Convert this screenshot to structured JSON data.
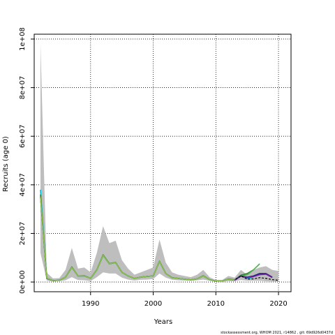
{
  "chart_data": {
    "type": "line",
    "xlabel": "Years",
    "ylabel": "Recruits (age 0)",
    "xlim": [
      1981,
      2022
    ],
    "ylim": [
      -4000000,
      102000000
    ],
    "x_ticks": [
      1990,
      2000,
      2010,
      2020
    ],
    "x_tick_labels": [
      "1990",
      "2000",
      "2010",
      "2020"
    ],
    "y_ticks": [
      0,
      20000000,
      40000000,
      60000000,
      80000000,
      100000000
    ],
    "y_tick_labels": [
      "0e+00",
      "2e+07",
      "4e+07",
      "6e+07",
      "8e+07",
      "1e+08"
    ],
    "grid": true,
    "grid_style": "dotted",
    "footer": "stockassessment.org, WHOM 2021, r14862 , git: 69d926d0437d",
    "confidence_band": {
      "color": "#bebebe",
      "x": [
        1982,
        1983,
        1984,
        1985,
        1986,
        1987,
        1988,
        1989,
        1990,
        1991,
        1992,
        1993,
        1994,
        1995,
        1996,
        1997,
        1998,
        1999,
        2000,
        2001,
        2002,
        2003,
        2004,
        2005,
        2006,
        2007,
        2008,
        2009,
        2010,
        2011,
        2012,
        2013,
        2014,
        2015,
        2016,
        2017,
        2018,
        2019,
        2020
      ],
      "upper": [
        98000000,
        3800000,
        1500000,
        1600000,
        5000000,
        14000000,
        5500000,
        6000000,
        4000000,
        12000000,
        23000000,
        16000000,
        17000000,
        9000000,
        5500000,
        3000000,
        4000000,
        5000000,
        6000000,
        17500000,
        8000000,
        4000000,
        3000000,
        2500000,
        2000000,
        3000000,
        5000000,
        2000000,
        800000,
        800000,
        2500000,
        1800000,
        5000000,
        3000000,
        5000000,
        6000000,
        6500000,
        5000000,
        4500000
      ],
      "lower": [
        12000000,
        600000,
        200000,
        300000,
        700000,
        2000000,
        800000,
        700000,
        400000,
        2000000,
        4000000,
        3500000,
        3500000,
        1800000,
        1000000,
        600000,
        900000,
        1000000,
        1200000,
        3500000,
        1800000,
        900000,
        700000,
        600000,
        500000,
        700000,
        1000000,
        500000,
        150000,
        150000,
        400000,
        300000,
        800000,
        500000,
        500000,
        500000,
        300000,
        200000,
        100000
      ]
    },
    "series": [
      {
        "color": "#00bcd4",
        "x": [
          1982,
          1983,
          1984,
          1985,
          1986,
          1987,
          1988,
          1989,
          1990,
          1991,
          1992,
          1993,
          1994,
          1995,
          1996,
          1997,
          1998,
          1999,
          2000,
          2001,
          2002,
          2003,
          2004,
          2005,
          2006,
          2007,
          2008,
          2009,
          2010,
          2011,
          2012,
          2013,
          2014,
          2015,
          2016
        ],
        "values": [
          38000000,
          1500000,
          600000,
          700000,
          2000000,
          6000000,
          2500000,
          2500000,
          1500000,
          5000000,
          11000000,
          7500000,
          8000000,
          4000000,
          2500000,
          1500000,
          2000000,
          2300000,
          2500000,
          8500000,
          3500000,
          1800000,
          1500000,
          1200000,
          900000,
          1300000,
          2500000,
          1000000,
          400000,
          400000,
          1200000,
          800000,
          2500000,
          1500000,
          2000000
        ]
      },
      {
        "color": "#2e7d32",
        "x": [
          1982,
          1983,
          1984,
          1985,
          1986,
          1987,
          1988,
          1989,
          1990,
          1991,
          1992,
          1993,
          1994,
          1995,
          1996,
          1997,
          1998,
          1999,
          2000,
          2001,
          2002,
          2003,
          2004,
          2005,
          2006,
          2007,
          2008,
          2009,
          2010,
          2011,
          2012,
          2013,
          2014,
          2015,
          2016
        ],
        "values": [
          36000000,
          1600000,
          600000,
          700000,
          2000000,
          6200000,
          2500000,
          2600000,
          1500000,
          5100000,
          11200000,
          7600000,
          8100000,
          4000000,
          2500000,
          1500000,
          2000000,
          2300000,
          2500000,
          8600000,
          3500000,
          1800000,
          1500000,
          1200000,
          900000,
          1300000,
          2600000,
          1000000,
          400000,
          400000,
          1300000,
          900000,
          2800000,
          3500000,
          5000000
        ]
      },
      {
        "color": "#4caf50",
        "x": [
          1982,
          1983,
          1984,
          1985,
          1986,
          1987,
          1988,
          1989,
          1990,
          1991,
          1992,
          1993,
          1994,
          1995,
          1996,
          1997,
          1998,
          1999,
          2000,
          2001,
          2002,
          2003,
          2004,
          2005,
          2006,
          2007,
          2008,
          2009,
          2010,
          2011,
          2012,
          2013,
          2014,
          2015,
          2016,
          2017
        ],
        "values": [
          35000000,
          1600000,
          600000,
          700000,
          2000000,
          6000000,
          2500000,
          2500000,
          1500000,
          5000000,
          11000000,
          7500000,
          8000000,
          4000000,
          2500000,
          1500000,
          2000000,
          2300000,
          2500000,
          8500000,
          3500000,
          1800000,
          1500000,
          1200000,
          900000,
          1300000,
          2500000,
          1000000,
          400000,
          400000,
          1200000,
          900000,
          2500000,
          3000000,
          5000000,
          7500000
        ]
      },
      {
        "color": "#1a237e",
        "x": [
          1982,
          1983,
          1984,
          1985,
          1986,
          1987,
          1988,
          1989,
          1990,
          1991,
          1992,
          1993,
          1994,
          1995,
          1996,
          1997,
          1998,
          1999,
          2000,
          2001,
          2002,
          2003,
          2004,
          2005,
          2006,
          2007,
          2008,
          2009,
          2010,
          2011,
          2012,
          2013,
          2014,
          2015,
          2016,
          2017,
          2018,
          2019
        ],
        "values": [
          35000000,
          1500000,
          600000,
          700000,
          2000000,
          6000000,
          2500000,
          2500000,
          1500000,
          5000000,
          11000000,
          7500000,
          8000000,
          4000000,
          2500000,
          1500000,
          2000000,
          2300000,
          2500000,
          8500000,
          3500000,
          1800000,
          1500000,
          1200000,
          900000,
          1300000,
          2500000,
          1000000,
          400000,
          400000,
          1200000,
          800000,
          2500000,
          2000000,
          2500000,
          3500000,
          3500000,
          2000000
        ]
      },
      {
        "color": "#7b1fa2",
        "x": [
          2012,
          2013,
          2014,
          2015,
          2016,
          2017,
          2018,
          2019
        ],
        "values": [
          1100000,
          800000,
          2400000,
          1800000,
          2200000,
          3000000,
          3200000,
          1800000
        ]
      },
      {
        "color": "#000000",
        "dashed": true,
        "x": [
          1982,
          1983,
          1984,
          1985,
          1986,
          1987,
          1988,
          1989,
          1990,
          1991,
          1992,
          1993,
          1994,
          1995,
          1996,
          1997,
          1998,
          1999,
          2000,
          2001,
          2002,
          2003,
          2004,
          2005,
          2006,
          2007,
          2008,
          2009,
          2010,
          2011,
          2012,
          2013,
          2014,
          2015,
          2016,
          2017,
          2018,
          2019,
          2020
        ],
        "values": [
          35000000,
          1500000,
          600000,
          700000,
          2000000,
          6000000,
          2500000,
          2500000,
          1500000,
          5000000,
          11000000,
          7500000,
          8000000,
          4000000,
          2500000,
          1500000,
          2000000,
          2300000,
          2500000,
          8500000,
          3500000,
          1800000,
          1500000,
          1200000,
          900000,
          1300000,
          2500000,
          1000000,
          400000,
          400000,
          1200000,
          800000,
          2500000,
          1200000,
          1300000,
          1800000,
          1500000,
          1000000,
          700000
        ]
      },
      {
        "color": "#8bc34a",
        "x": [
          1982,
          1983,
          1984,
          1985,
          1986,
          1987,
          1988,
          1989,
          1990,
          1991,
          1992,
          1993,
          1994,
          1995,
          1996,
          1997,
          1998,
          1999,
          2000,
          2001,
          2002,
          2003,
          2004,
          2005,
          2006,
          2007,
          2008,
          2009,
          2010,
          2011,
          2012,
          2013
        ],
        "values": [
          35000000,
          1600000,
          600000,
          700000,
          2000000,
          6000000,
          2500000,
          2500000,
          1500000,
          5000000,
          11000000,
          7500000,
          8000000,
          4000000,
          2500000,
          1500000,
          2000000,
          2300000,
          2500000,
          8500000,
          3500000,
          1800000,
          1500000,
          1200000,
          900000,
          1300000,
          2500000,
          1000000,
          400000,
          400000,
          1200000,
          800000
        ]
      }
    ]
  }
}
